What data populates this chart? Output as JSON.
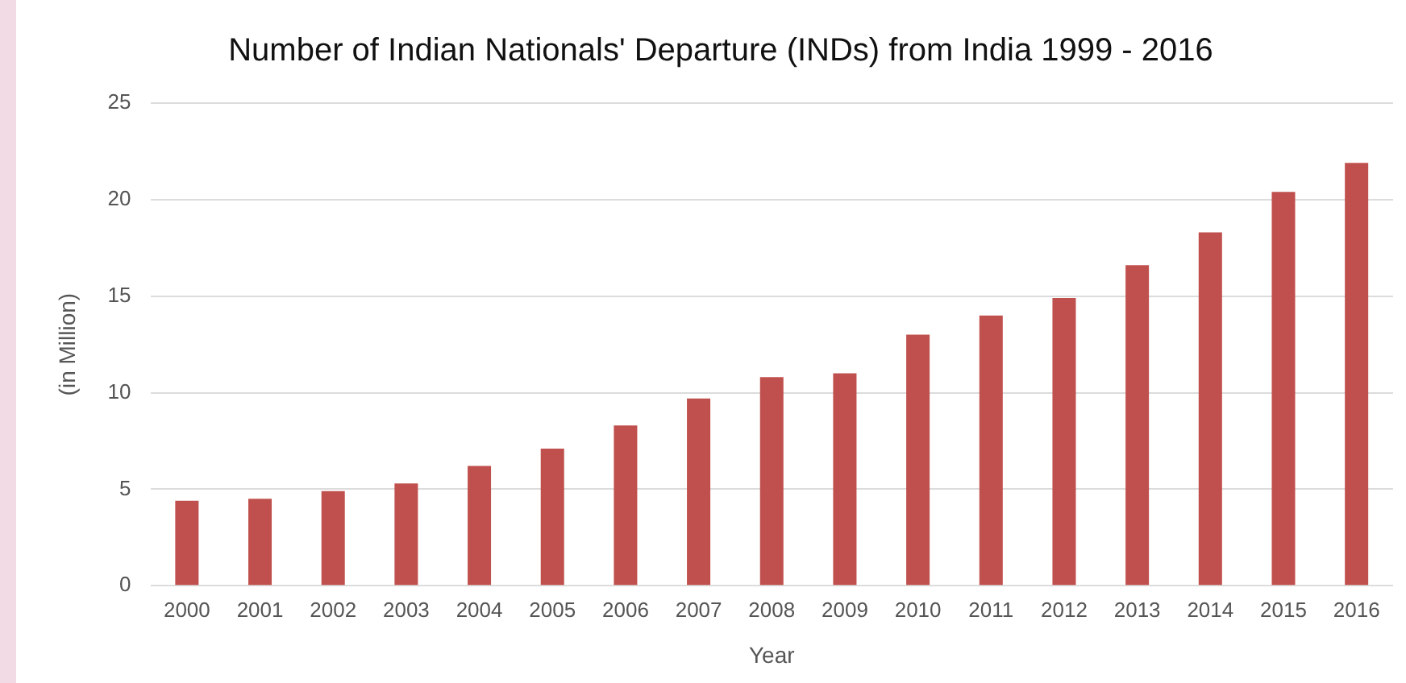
{
  "chart_data": {
    "type": "bar",
    "title": "Number of Indian Nationals' Departure (INDs) from India 1999 - 2016",
    "xlabel": "Year",
    "ylabel": "(in Million)",
    "categories": [
      "2000",
      "2001",
      "2002",
      "2003",
      "2004",
      "2005",
      "2006",
      "2007",
      "2008",
      "2009",
      "2010",
      "2011",
      "2012",
      "2013",
      "2014",
      "2015",
      "2016"
    ],
    "values": [
      4.4,
      4.5,
      4.9,
      5.3,
      6.2,
      7.1,
      8.3,
      9.7,
      10.8,
      11.0,
      13.0,
      14.0,
      14.9,
      16.6,
      18.3,
      20.4,
      21.9
    ],
    "color": "#c0504d",
    "ylim": [
      0,
      25
    ],
    "yticks": [
      0,
      5,
      10,
      15,
      20,
      25
    ],
    "grid": "y",
    "legend": false
  }
}
